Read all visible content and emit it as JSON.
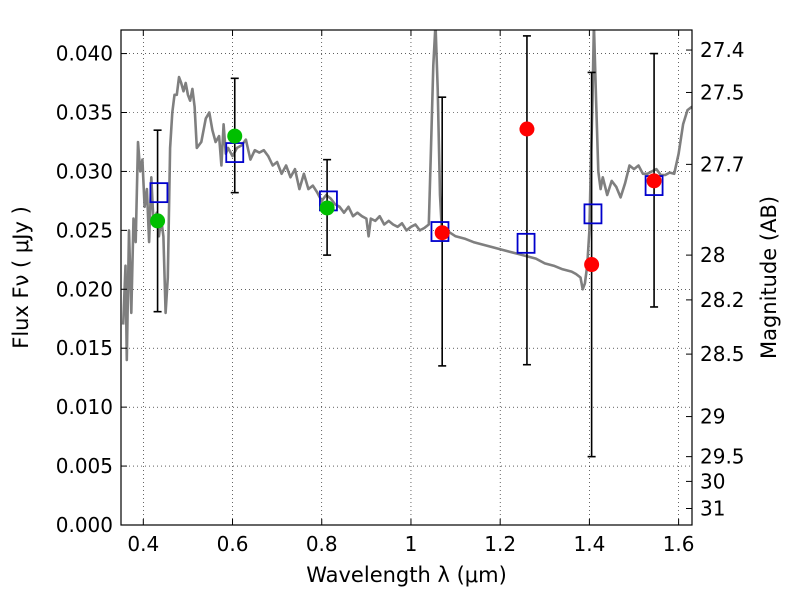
{
  "chart_data": {
    "type": "scatter",
    "xlabel": "Wavelength  λ (μm)",
    "ylabel_left": "Flux  Fν  ( μJy )",
    "ylabel_right": "Magnitude (AB)",
    "xlim": [
      0.35,
      1.63
    ],
    "ylim": [
      0.0,
      0.042
    ],
    "grid": true,
    "x_ticks": [
      0.4,
      0.6,
      0.8,
      1.0,
      1.2,
      1.4,
      1.6
    ],
    "x_tick_labels": [
      "0.4",
      "0.6",
      "0.8",
      "1",
      "1.2",
      "1.4",
      "1.6"
    ],
    "y_ticks": [
      0.0,
      0.005,
      0.01,
      0.015,
      0.02,
      0.025,
      0.03,
      0.035,
      0.04
    ],
    "y_tick_labels": [
      "0.000",
      "0.005",
      "0.010",
      "0.015",
      "0.020",
      "0.025",
      "0.030",
      "0.035",
      "0.040"
    ],
    "right_ticks": [
      {
        "flux": 0.0403,
        "label": "27.4"
      },
      {
        "flux": 0.0367,
        "label": "27.5"
      },
      {
        "flux": 0.0306,
        "label": "27.7"
      },
      {
        "flux": 0.0229,
        "label": "28"
      },
      {
        "flux": 0.0191,
        "label": "28.2"
      },
      {
        "flux": 0.0145,
        "label": "28.5"
      },
      {
        "flux": 0.0092,
        "label": "29"
      },
      {
        "flux": 0.0058,
        "label": "29.5"
      },
      {
        "flux": 0.0037,
        "label": "30"
      },
      {
        "flux": 0.0014,
        "label": "31"
      }
    ],
    "series": [
      {
        "kind": "line",
        "color": "#7f7f7f",
        "points": [
          [
            0.355,
            0.017
          ],
          [
            0.36,
            0.022
          ],
          [
            0.363,
            0.014
          ],
          [
            0.368,
            0.025
          ],
          [
            0.373,
            0.018
          ],
          [
            0.378,
            0.026
          ],
          [
            0.383,
            0.024
          ],
          [
            0.388,
            0.0325
          ],
          [
            0.393,
            0.03
          ],
          [
            0.398,
            0.031
          ],
          [
            0.403,
            0.027
          ],
          [
            0.408,
            0.0285
          ],
          [
            0.413,
            0.024
          ],
          [
            0.418,
            0.0295
          ],
          [
            0.423,
            0.0255
          ],
          [
            0.43,
            0.0265
          ],
          [
            0.435,
            0.0245
          ],
          [
            0.44,
            0.026
          ],
          [
            0.445,
            0.0245
          ],
          [
            0.45,
            0.018
          ],
          [
            0.455,
            0.021
          ],
          [
            0.46,
            0.032
          ],
          [
            0.465,
            0.035
          ],
          [
            0.47,
            0.0365
          ],
          [
            0.475,
            0.0365
          ],
          [
            0.48,
            0.038
          ],
          [
            0.485,
            0.0375
          ],
          [
            0.49,
            0.0368
          ],
          [
            0.495,
            0.0375
          ],
          [
            0.5,
            0.0365
          ],
          [
            0.505,
            0.036
          ],
          [
            0.51,
            0.037
          ],
          [
            0.515,
            0.0355
          ],
          [
            0.52,
            0.032
          ],
          [
            0.53,
            0.0325
          ],
          [
            0.54,
            0.0345
          ],
          [
            0.548,
            0.035
          ],
          [
            0.555,
            0.0335
          ],
          [
            0.562,
            0.0325
          ],
          [
            0.57,
            0.033
          ],
          [
            0.575,
            0.0305
          ],
          [
            0.58,
            0.034
          ],
          [
            0.585,
            0.0315
          ],
          [
            0.59,
            0.032
          ],
          [
            0.6,
            0.0313
          ],
          [
            0.61,
            0.032
          ],
          [
            0.62,
            0.0322
          ],
          [
            0.63,
            0.0327
          ],
          [
            0.64,
            0.031
          ],
          [
            0.65,
            0.0318
          ],
          [
            0.66,
            0.0316
          ],
          [
            0.67,
            0.0318
          ],
          [
            0.68,
            0.0313
          ],
          [
            0.69,
            0.0305
          ],
          [
            0.7,
            0.0308
          ],
          [
            0.71,
            0.0298
          ],
          [
            0.72,
            0.0305
          ],
          [
            0.73,
            0.0295
          ],
          [
            0.74,
            0.0302
          ],
          [
            0.75,
            0.0285
          ],
          [
            0.76,
            0.0298
          ],
          [
            0.77,
            0.0285
          ],
          [
            0.78,
            0.0288
          ],
          [
            0.79,
            0.0282
          ],
          [
            0.8,
            0.0275
          ],
          [
            0.81,
            0.028
          ],
          [
            0.82,
            0.0277
          ],
          [
            0.83,
            0.0272
          ],
          [
            0.84,
            0.027
          ],
          [
            0.85,
            0.0265
          ],
          [
            0.86,
            0.027
          ],
          [
            0.87,
            0.0262
          ],
          [
            0.88,
            0.0265
          ],
          [
            0.89,
            0.0262
          ],
          [
            0.9,
            0.026
          ],
          [
            0.905,
            0.0245
          ],
          [
            0.91,
            0.026
          ],
          [
            0.92,
            0.0258
          ],
          [
            0.93,
            0.0262
          ],
          [
            0.94,
            0.0255
          ],
          [
            0.95,
            0.0258
          ],
          [
            0.96,
            0.0255
          ],
          [
            0.97,
            0.0253
          ],
          [
            0.98,
            0.0256
          ],
          [
            0.99,
            0.025
          ],
          [
            1.0,
            0.0253
          ],
          [
            1.01,
            0.0255
          ],
          [
            1.02,
            0.025
          ],
          [
            1.03,
            0.0252
          ],
          [
            1.04,
            0.0255
          ],
          [
            1.045,
            0.032
          ],
          [
            1.05,
            0.039
          ],
          [
            1.055,
            0.0425
          ],
          [
            1.06,
            0.037
          ],
          [
            1.065,
            0.028
          ],
          [
            1.07,
            0.0245
          ],
          [
            1.08,
            0.025
          ],
          [
            1.1,
            0.0245
          ],
          [
            1.12,
            0.0243
          ],
          [
            1.14,
            0.024
          ],
          [
            1.16,
            0.0238
          ],
          [
            1.18,
            0.0236
          ],
          [
            1.2,
            0.0234
          ],
          [
            1.22,
            0.0232
          ],
          [
            1.24,
            0.023
          ],
          [
            1.26,
            0.0228
          ],
          [
            1.28,
            0.0226
          ],
          [
            1.3,
            0.0222
          ],
          [
            1.32,
            0.022
          ],
          [
            1.34,
            0.0217
          ],
          [
            1.36,
            0.0215
          ],
          [
            1.37,
            0.0213
          ],
          [
            1.38,
            0.021
          ],
          [
            1.385,
            0.02
          ],
          [
            1.39,
            0.0205
          ],
          [
            1.395,
            0.022
          ],
          [
            1.4,
            0.025
          ],
          [
            1.403,
            0.03
          ],
          [
            1.407,
            0.036
          ],
          [
            1.41,
            0.0425
          ],
          [
            1.415,
            0.036
          ],
          [
            1.42,
            0.03
          ],
          [
            1.425,
            0.0285
          ],
          [
            1.43,
            0.0295
          ],
          [
            1.44,
            0.028
          ],
          [
            1.45,
            0.0292
          ],
          [
            1.46,
            0.0287
          ],
          [
            1.47,
            0.0278
          ],
          [
            1.48,
            0.029
          ],
          [
            1.49,
            0.0305
          ],
          [
            1.5,
            0.0302
          ],
          [
            1.51,
            0.0305
          ],
          [
            1.52,
            0.0298
          ],
          [
            1.53,
            0.0298
          ],
          [
            1.54,
            0.03
          ],
          [
            1.55,
            0.0302
          ],
          [
            1.56,
            0.0297
          ],
          [
            1.57,
            0.0297
          ],
          [
            1.58,
            0.0299
          ],
          [
            1.59,
            0.0298
          ],
          [
            1.6,
            0.0315
          ],
          [
            1.61,
            0.034
          ],
          [
            1.62,
            0.0352
          ],
          [
            1.63,
            0.0355
          ]
        ]
      },
      {
        "kind": "errorbar",
        "color": "#000000",
        "points": [
          {
            "x": 0.432,
            "y": 0.0258,
            "low": 0.0181,
            "high": 0.0335
          },
          {
            "x": 0.605,
            "y": 0.033,
            "low": 0.0282,
            "high": 0.0379
          },
          {
            "x": 0.812,
            "y": 0.0269,
            "low": 0.0229,
            "high": 0.031
          },
          {
            "x": 1.07,
            "y": 0.0248,
            "low": 0.0135,
            "high": 0.0363
          },
          {
            "x": 1.26,
            "y": 0.0336,
            "low": 0.0136,
            "high": 0.0415
          },
          {
            "x": 1.405,
            "y": 0.0221,
            "low": 0.0058,
            "high": 0.0384
          },
          {
            "x": 1.545,
            "y": 0.0292,
            "low": 0.0185,
            "high": 0.04
          }
        ]
      },
      {
        "kind": "marker-square",
        "color": "#0000cc",
        "points": [
          [
            0.435,
            0.0282
          ],
          [
            0.605,
            0.0316
          ],
          [
            0.815,
            0.0275
          ],
          [
            1.065,
            0.0249
          ],
          [
            1.258,
            0.0239
          ],
          [
            1.408,
            0.0264
          ],
          [
            1.545,
            0.0288
          ]
        ]
      },
      {
        "kind": "marker-circle",
        "color": "#00bf00",
        "points": [
          [
            0.432,
            0.0258
          ],
          [
            0.605,
            0.033
          ],
          [
            0.812,
            0.0269
          ]
        ]
      },
      {
        "kind": "marker-circle",
        "color": "#ff0000",
        "points": [
          [
            1.07,
            0.0248
          ],
          [
            1.26,
            0.0336
          ],
          [
            1.405,
            0.0221
          ],
          [
            1.545,
            0.0292
          ]
        ]
      }
    ]
  }
}
